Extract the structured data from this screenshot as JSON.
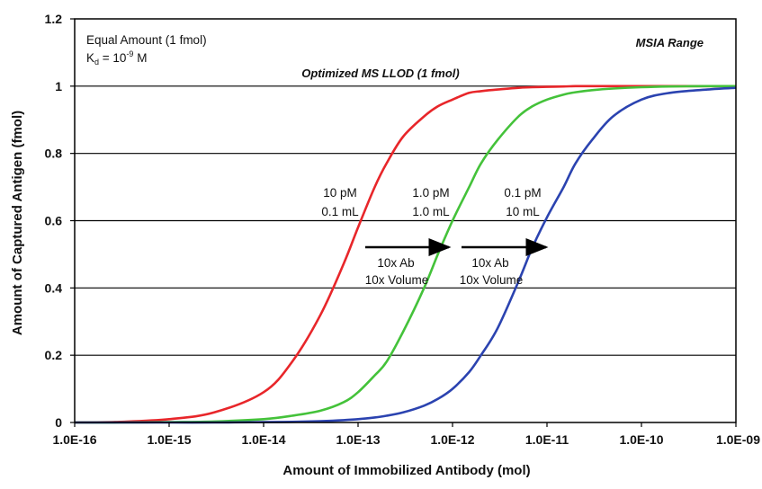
{
  "chart_data": {
    "type": "line",
    "xlabel": "Amount of Immobilized Antibody (mol)",
    "ylabel": "Amount of Captured Antigen (fmol)",
    "x_scale": "log",
    "xlim": [
      1e-16,
      1e-09
    ],
    "ylim": [
      0,
      1.2
    ],
    "x_ticks": [
      "1.0E-16",
      "1.0E-15",
      "1.0E-14",
      "1.0E-13",
      "1.0E-12",
      "1.0E-11",
      "1.0E-10",
      "1.0E-09"
    ],
    "x_tick_values": [
      1e-16,
      1e-15,
      1e-14,
      1e-13,
      1e-12,
      1e-11,
      1e-10,
      1e-09
    ],
    "y_ticks": [
      "0",
      "0.2",
      "0.4",
      "0.6",
      "0.8",
      "1",
      "1.2"
    ],
    "y_tick_values": [
      0,
      0.2,
      0.4,
      0.6,
      0.8,
      1.0,
      1.2
    ],
    "grid": "horizontal",
    "x": [
      1e-16,
      3e-16,
      1e-15,
      3e-15,
      1e-14,
      2e-14,
      4e-14,
      7e-14,
      1e-13,
      1.5e-13,
      2e-13,
      3e-13,
      5e-13,
      7e-13,
      1e-12,
      1.5e-12,
      2e-12,
      3e-12,
      5e-12,
      7e-12,
      1e-11,
      1.5e-11,
      2e-11,
      3e-11,
      5e-11,
      1e-10,
      2e-10,
      5e-10,
      1e-09
    ],
    "series": [
      {
        "color": "#e8262a",
        "values": [
          0.0,
          0.002,
          0.01,
          0.03,
          0.09,
          0.18,
          0.32,
          0.47,
          0.58,
          0.7,
          0.77,
          0.85,
          0.91,
          0.94,
          0.96,
          0.98,
          0.985,
          0.99,
          0.995,
          0.997,
          0.998,
          0.999,
          1.0,
          1.0,
          1.0,
          1.0,
          1.0,
          1.0,
          1.0
        ]
      },
      {
        "color": "#44c23a",
        "values": [
          0.0,
          0.0,
          0.001,
          0.003,
          0.01,
          0.02,
          0.035,
          0.06,
          0.09,
          0.14,
          0.18,
          0.27,
          0.4,
          0.5,
          0.6,
          0.7,
          0.77,
          0.84,
          0.91,
          0.94,
          0.96,
          0.975,
          0.982,
          0.988,
          0.993,
          0.997,
          0.999,
          1.0,
          1.0
        ]
      },
      {
        "color": "#2b43b0",
        "values": [
          0.0,
          0.0,
          0.0,
          0.0,
          0.001,
          0.002,
          0.004,
          0.007,
          0.01,
          0.015,
          0.02,
          0.03,
          0.05,
          0.07,
          0.1,
          0.15,
          0.2,
          0.28,
          0.42,
          0.52,
          0.61,
          0.7,
          0.77,
          0.84,
          0.91,
          0.96,
          0.98,
          0.99,
          0.995
        ]
      }
    ],
    "annotations": {
      "top_left_line1": "Equal Amount (1 fmol)",
      "kd_prefix": "K",
      "kd_sub": "d",
      "kd_mid": " = 10",
      "kd_sup": "-9",
      "kd_suffix": " M",
      "top_right": "MSIA Range",
      "llod_line": "Optimized MS LLOD (1 fmol)",
      "red_conc": "10 pM",
      "red_vol": "0.1 mL",
      "green_conc": "1.0 pM",
      "green_vol": "1.0 mL",
      "blue_conc": "0.1 pM",
      "blue_vol": "10 mL",
      "arrow1_line1": "10x Ab",
      "arrow1_line2": "10x Volume",
      "arrow2_line1": "10x Ab",
      "arrow2_line2": "10x Volume"
    }
  }
}
